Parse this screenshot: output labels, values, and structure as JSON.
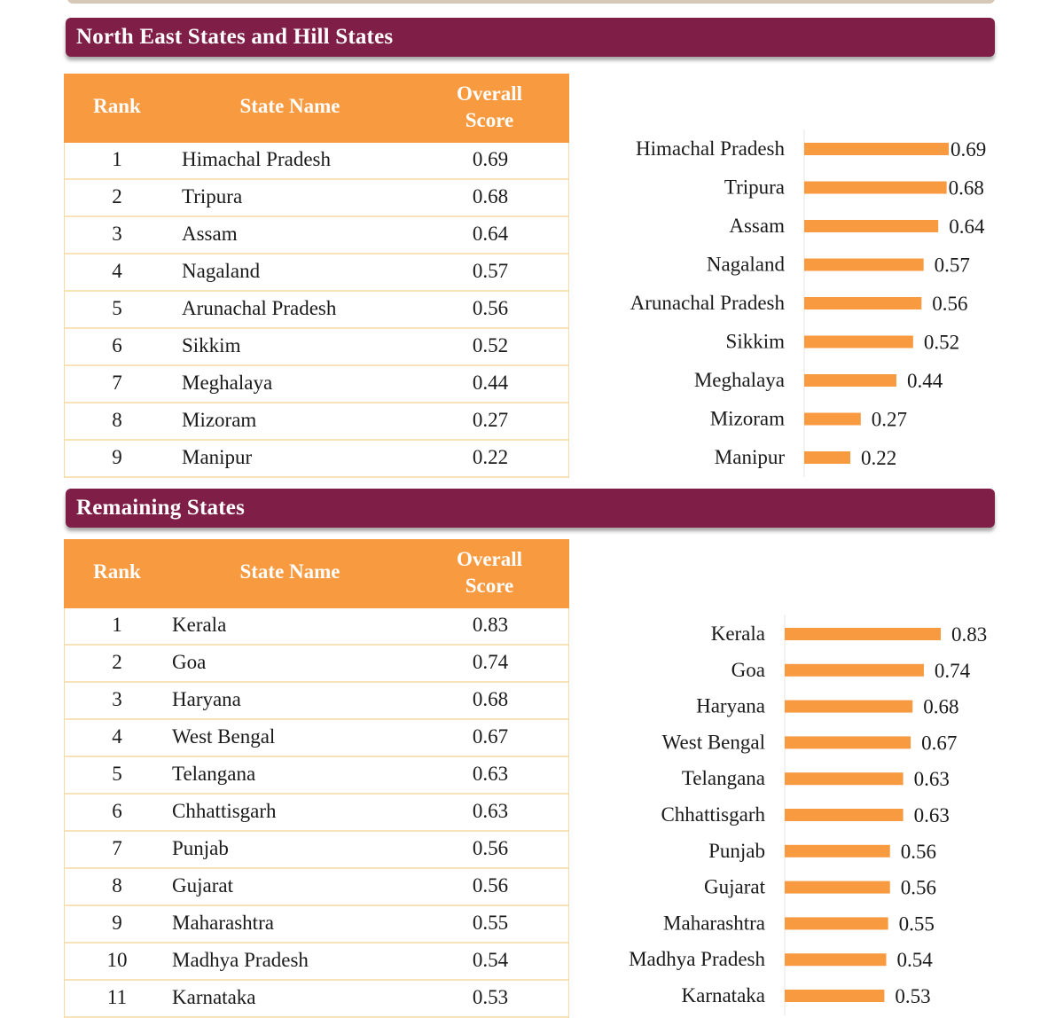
{
  "sections": [
    {
      "title": "North East States and Hill States",
      "headers": {
        "rank": "Rank",
        "name": "State Name",
        "score_line1": "Overall",
        "score_line2": "Score"
      },
      "rows": [
        {
          "rank": "1",
          "name": "Himachal Pradesh",
          "score": "0.69"
        },
        {
          "rank": "2",
          "name": "Tripura",
          "score": "0.68"
        },
        {
          "rank": "3",
          "name": "Assam",
          "score": "0.64"
        },
        {
          "rank": "4",
          "name": "Nagaland",
          "score": "0.57"
        },
        {
          "rank": "5",
          "name": "Arunachal Pradesh",
          "score": "0.56"
        },
        {
          "rank": "6",
          "name": "Sikkim",
          "score": "0.52"
        },
        {
          "rank": "7",
          "name": "Meghalaya",
          "score": "0.44"
        },
        {
          "rank": "8",
          "name": "Mizoram",
          "score": "0.27"
        },
        {
          "rank": "9",
          "name": "Manipur",
          "score": "0.22"
        }
      ]
    },
    {
      "title": "Remaining States",
      "headers": {
        "rank": "Rank",
        "name": "State Name",
        "score_line1": "Overall",
        "score_line2": "Score"
      },
      "rows": [
        {
          "rank": "1",
          "name": "Kerala",
          "score": "0.83"
        },
        {
          "rank": "2",
          "name": "Goa",
          "score": "0.74"
        },
        {
          "rank": "3",
          "name": "Haryana",
          "score": "0.68"
        },
        {
          "rank": "4",
          "name": "West Bengal",
          "score": "0.67"
        },
        {
          "rank": "5",
          "name": "Telangana",
          "score": "0.63"
        },
        {
          "rank": "6",
          "name": "Chhattisgarh",
          "score": "0.63"
        },
        {
          "rank": "7",
          "name": "Punjab",
          "score": "0.56"
        },
        {
          "rank": "8",
          "name": "Gujarat",
          "score": "0.56"
        },
        {
          "rank": "9",
          "name": "Maharashtra",
          "score": "0.55"
        },
        {
          "rank": "10",
          "name": "Madhya Pradesh",
          "score": "0.54"
        },
        {
          "rank": "11",
          "name": "Karnataka",
          "score": "0.53"
        }
      ]
    }
  ],
  "chart_data": [
    {
      "type": "bar",
      "orientation": "horizontal",
      "title": "",
      "categories": [
        "Himachal Pradesh",
        "Tripura",
        "Assam",
        "Nagaland",
        "Arunachal Pradesh",
        "Sikkim",
        "Meghalaya",
        "Mizoram",
        "Manipur"
      ],
      "values": [
        0.69,
        0.68,
        0.64,
        0.57,
        0.56,
        0.52,
        0.44,
        0.27,
        0.22
      ],
      "labels": [
        "0.69",
        "0.68",
        "0.64",
        "0.57",
        "0.56",
        "0.52",
        "0.44",
        "0.27",
        "0.22"
      ],
      "xlim": [
        0,
        0.69
      ],
      "color": "#f79a40"
    },
    {
      "type": "bar",
      "orientation": "horizontal",
      "title": "",
      "categories": [
        "Kerala",
        "Goa",
        "Haryana",
        "West Bengal",
        "Telangana",
        "Chhattisgarh",
        "Punjab",
        "Gujarat",
        "Maharashtra",
        "Madhya Pradesh",
        "Karnataka"
      ],
      "values": [
        0.83,
        0.74,
        0.68,
        0.67,
        0.63,
        0.63,
        0.56,
        0.56,
        0.55,
        0.54,
        0.53
      ],
      "labels": [
        "0.83",
        "0.74",
        "0.68",
        "0.67",
        "0.63",
        "0.63",
        "0.56",
        "0.56",
        "0.55",
        "0.54",
        "0.53"
      ],
      "xlim": [
        0,
        0.83
      ],
      "color": "#f79a40"
    }
  ]
}
